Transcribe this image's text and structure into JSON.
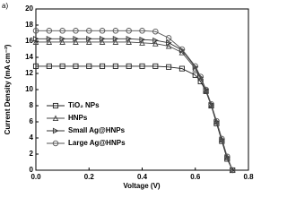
{
  "panel_label": "a)",
  "chart_data": {
    "type": "line",
    "xlabel": "Voltage (V)",
    "ylabel": "Current Density (mA cm⁻²)",
    "x": [
      0,
      0.05,
      0.1,
      0.15,
      0.2,
      0.25,
      0.3,
      0.35,
      0.4,
      0.45,
      0.5,
      0.55,
      0.6,
      0.62,
      0.64,
      0.66,
      0.68,
      0.7,
      0.72,
      0.74
    ],
    "series": [
      {
        "name": "TiO₂ NPs",
        "color": "#222222",
        "marker": "square",
        "values": [
          12.9,
          12.9,
          12.9,
          12.9,
          12.9,
          12.9,
          12.9,
          12.9,
          12.9,
          12.9,
          12.8,
          12.6,
          11.8,
          11.0,
          9.8,
          8.0,
          5.8,
          3.6,
          1.4,
          0
        ]
      },
      {
        "name": "HNPs",
        "color": "#444444",
        "marker": "triangle-up",
        "values": [
          15.9,
          15.9,
          15.9,
          15.9,
          15.9,
          15.9,
          15.9,
          15.9,
          15.8,
          15.7,
          15.4,
          14.6,
          12.6,
          11.4,
          9.9,
          8.1,
          6.0,
          3.8,
          1.6,
          0
        ]
      },
      {
        "name": "Small Ag@HNPs",
        "color": "#333333",
        "marker": "triangle-right",
        "values": [
          16.3,
          16.3,
          16.3,
          16.3,
          16.3,
          16.3,
          16.3,
          16.3,
          16.2,
          16.1,
          15.8,
          14.9,
          12.8,
          11.5,
          10.0,
          8.1,
          6.0,
          3.8,
          1.6,
          0
        ]
      },
      {
        "name": "Large Ag@HNPs",
        "color": "#555555",
        "marker": "circle",
        "values": [
          17.3,
          17.3,
          17.3,
          17.3,
          17.3,
          17.3,
          17.3,
          17.3,
          17.3,
          17.2,
          16.4,
          15.0,
          12.9,
          11.6,
          10.0,
          8.2,
          6.1,
          3.9,
          1.7,
          0
        ]
      }
    ],
    "xlim": [
      0,
      0.8
    ],
    "xticks": [
      {
        "value": 0,
        "label": "0.0"
      },
      0.2,
      0.4,
      0.6,
      0.8
    ],
    "ylim": [
      0,
      20
    ],
    "yticks": [
      0,
      2,
      4,
      6,
      8,
      10,
      12,
      14,
      16,
      18,
      20
    ],
    "legend": "lower left"
  }
}
